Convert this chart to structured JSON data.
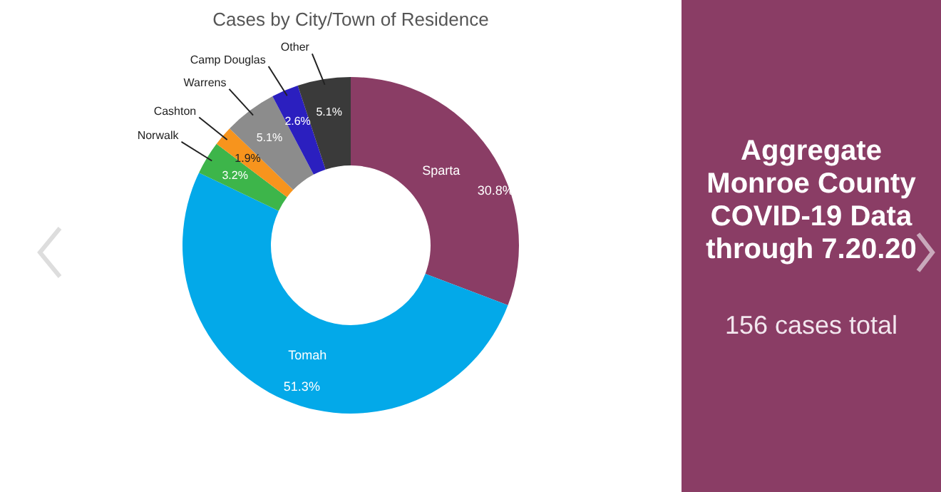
{
  "chart_data": {
    "type": "donut",
    "title": "Cases by City/Town of Residence",
    "categories": [
      "Sparta",
      "Tomah",
      "Norwalk",
      "Cashton",
      "Warrens",
      "Camp Douglas",
      "Other"
    ],
    "values": [
      30.8,
      51.3,
      3.2,
      1.9,
      5.1,
      2.6,
      5.1
    ],
    "colors": [
      "#8a3d65",
      "#03a9e9",
      "#3db54a",
      "#f7941d",
      "#8c8c8c",
      "#2b1fbf",
      "#3a3a3a"
    ],
    "value_labels": [
      "30.8%",
      "51.3%",
      "3.2%",
      "1.9%",
      "5.1%",
      "2.6%",
      "5.1%"
    ],
    "annotations": [
      "Aggregate Monroe County COVID-19 Data through 7.20.20",
      "156 cases total"
    ]
  }
}
